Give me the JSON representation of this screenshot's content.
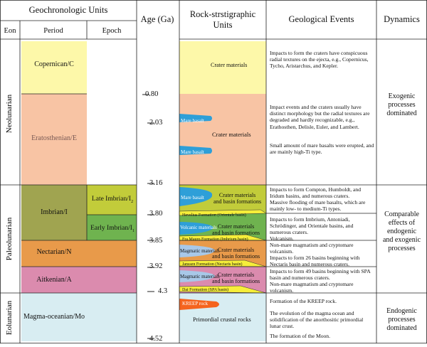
{
  "headers": {
    "geochronologic": "Geochronologic Units",
    "eon": "Eon",
    "period": "Period",
    "epoch": "Epoch",
    "age": "Age (Ga)",
    "rock_line1": "Rock-strstigraphic",
    "rock_line2": "Units",
    "events": "Geological Events",
    "dynamics": "Dynamics"
  },
  "eons": [
    "Neolunarian",
    "Paleolunarian",
    "Eolunarian"
  ],
  "periods": [
    "Copernican/C",
    "Eratosthenian/E",
    "Imbrian/I",
    "Nectarian/N",
    "Aitkenian/A",
    "Magma-oceanian/Mo"
  ],
  "epochs": {
    "late": "Late Imbrian/I",
    "late_sub": "2",
    "early": "Early Imbrian/I",
    "early_sub": "1"
  },
  "ages": [
    "0.80",
    "2.03",
    "3.16",
    "3.80",
    "3.85",
    "3.92",
    "4.3",
    "4.52"
  ],
  "rock_units": {
    "crater_materials": "Crater materials",
    "crater_basin": "Crater materials\nand basin formations",
    "mare_basalt": "Mare basalt",
    "volcanic": "Volcanic materials",
    "magmatic": "Magmatic materials",
    "primordial": "Primordial crustal rocks",
    "kreep": "KREEP rock",
    "hevelius": "Hevelius Formation (Orientale basin)",
    "fra_mauro": "Fra Mauro Formation (Imbrium basin)",
    "janssen": "Janssen Formation (Nectaris basin)",
    "dai": "Dai Formation (SPA basin)"
  },
  "events": [
    "Impacts to form the craters have conspicuous radial textures on the ejecta, e.g., Copernicus, Tycho, Aristarchus, and Kepler.",
    "Impact events and the craters usually have distinct morphology but the radial textures are degraded and hardly recognizable, e.g., Erathosthen, Delisle, Euler, and Lambert.",
    "Small amount of mare basalts were erupted, and are mainly high-Ti type.",
    "Impacts to form Compton, Humboldt, and Iridum basins, and numerous craters.",
    "Massive flooding of mare basalts, which are mainly low- to medium-Ti types.",
    "Impacts to form Imbrium, Antoniadi, Schrödinger, and Orientale basins, and numerous craters.",
    "Volcanism.",
    "Non-mare magmatism and cryptomare volcanism.",
    "Impacts to form 26 basins beginning with Nectaris basin and numerous craters.",
    "Impacts to form 49 basins beginning with SPA basin and numerous craters.",
    "Non-mare magmatism and cryptomare volcanism.",
    "Formation of the KREEP rock.",
    "The evolution of the magma ocean and solidification of the anorthositic primordial lunar crust.",
    "The formation of the Moon."
  ],
  "dynamics": [
    "Exogenic\nprocesses\ndominated",
    "Comparable\neffects of\nendogenic\nand exogenic\nprocesses",
    "Endogenic\nprocesses\ndominated"
  ],
  "colors": {
    "copernican": "#FDF8A9",
    "eratosthenian": "#F8C4A4",
    "imbrian": "#A0A450",
    "late_imbrian": "#C2CC3A",
    "early_imbrian": "#6FB34F",
    "nectarian": "#E89A4A",
    "aitkenian": "#DB8BAE",
    "magma_oceanian": "#D8EDF2",
    "mare_basalt": "#2E9FD8",
    "magmatic": "#A8C8E8",
    "formation": "#F6EE3A",
    "kreep": "#F5641E"
  }
}
